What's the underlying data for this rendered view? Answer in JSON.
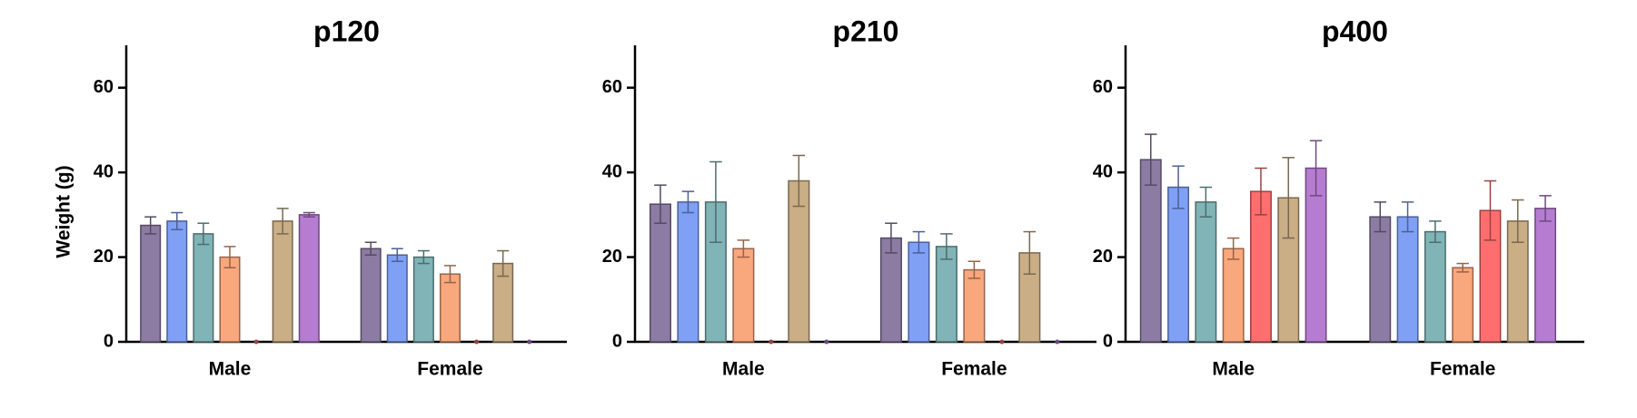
{
  "chart_data": [
    {
      "type": "bar",
      "title": "p120",
      "y_label": "Weight (g)",
      "categories": [
        "Male",
        "Female"
      ],
      "ylim": [
        0,
        70
      ],
      "yticks": [
        0,
        20,
        40,
        60
      ],
      "series": [
        {
          "color": "#8c7ba3",
          "values": [
            27.5,
            22
          ],
          "errors": [
            2,
            1.5
          ]
        },
        {
          "color": "#7fa0f5",
          "values": [
            28.5,
            20.5
          ],
          "errors": [
            2,
            1.5
          ]
        },
        {
          "color": "#80b4b6",
          "values": [
            25.5,
            20
          ],
          "errors": [
            2.5,
            1.5
          ]
        },
        {
          "color": "#f9a77c",
          "values": [
            20,
            16
          ],
          "errors": [
            2.5,
            2
          ]
        },
        {
          "color": "#ff6e6e",
          "values": [
            0,
            0
          ],
          "errors": [
            0,
            0
          ]
        },
        {
          "color": "#c9ae86",
          "values": [
            28.5,
            18.5
          ],
          "errors": [
            3,
            3
          ]
        },
        {
          "color": "#b67cd2",
          "values": [
            30,
            0
          ],
          "errors": [
            0.5,
            0
          ]
        }
      ]
    },
    {
      "type": "bar",
      "title": "p210",
      "categories": [
        "Male",
        "Female"
      ],
      "ylim": [
        0,
        70
      ],
      "yticks": [
        0,
        20,
        40,
        60
      ],
      "series": [
        {
          "color": "#8c7ba3",
          "values": [
            32.5,
            24.5
          ],
          "errors": [
            4.5,
            3.5
          ]
        },
        {
          "color": "#7fa0f5",
          "values": [
            33,
            23.5
          ],
          "errors": [
            2.5,
            2.5
          ]
        },
        {
          "color": "#80b4b6",
          "values": [
            33,
            22.5
          ],
          "errors": [
            9.5,
            3
          ]
        },
        {
          "color": "#f9a77c",
          "values": [
            22,
            17
          ],
          "errors": [
            2,
            2
          ]
        },
        {
          "color": "#ff6e6e",
          "values": [
            0,
            0
          ],
          "errors": [
            0,
            0
          ]
        },
        {
          "color": "#c9ae86",
          "values": [
            38,
            21
          ],
          "errors": [
            6,
            5
          ]
        },
        {
          "color": "#b67cd2",
          "values": [
            0,
            0
          ],
          "errors": [
            0,
            0
          ]
        }
      ]
    },
    {
      "type": "bar",
      "title": "p400",
      "categories": [
        "Male",
        "Female"
      ],
      "ylim": [
        0,
        70
      ],
      "yticks": [
        0,
        20,
        40,
        60
      ],
      "series": [
        {
          "color": "#8c7ba3",
          "values": [
            43,
            29.5
          ],
          "errors": [
            6,
            3.5
          ]
        },
        {
          "color": "#7fa0f5",
          "values": [
            36.5,
            29.5
          ],
          "errors": [
            5,
            3.5
          ]
        },
        {
          "color": "#80b4b6",
          "values": [
            33,
            26
          ],
          "errors": [
            3.5,
            2.5
          ]
        },
        {
          "color": "#f9a77c",
          "values": [
            22,
            17.5
          ],
          "errors": [
            2.5,
            1
          ]
        },
        {
          "color": "#ff6e6e",
          "values": [
            35.5,
            31
          ],
          "errors": [
            5.5,
            7
          ]
        },
        {
          "color": "#c9ae86",
          "values": [
            34,
            28.5
          ],
          "errors": [
            9.5,
            5
          ]
        },
        {
          "color": "#b67cd2",
          "values": [
            41,
            31.5
          ],
          "errors": [
            6.5,
            3
          ]
        }
      ]
    }
  ]
}
